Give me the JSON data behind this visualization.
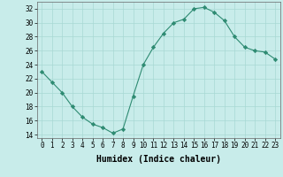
{
  "x": [
    0,
    1,
    2,
    3,
    4,
    5,
    6,
    7,
    8,
    9,
    10,
    11,
    12,
    13,
    14,
    15,
    16,
    17,
    18,
    19,
    20,
    21,
    22,
    23
  ],
  "y": [
    23,
    21.5,
    20,
    18,
    16.5,
    15.5,
    15,
    14.2,
    14.8,
    19.5,
    24,
    26.5,
    28.5,
    30,
    30.5,
    32,
    32.2,
    31.5,
    30.3,
    28,
    26.5,
    26,
    25.8,
    24.8
  ],
  "xlabel": "Humidex (Indice chaleur)",
  "ylabel": "",
  "xlim": [
    -0.5,
    23.5
  ],
  "ylim": [
    13.5,
    33
  ],
  "yticks": [
    14,
    16,
    18,
    20,
    22,
    24,
    26,
    28,
    30,
    32
  ],
  "xticks": [
    0,
    1,
    2,
    3,
    4,
    5,
    6,
    7,
    8,
    9,
    10,
    11,
    12,
    13,
    14,
    15,
    16,
    17,
    18,
    19,
    20,
    21,
    22,
    23
  ],
  "line_color": "#2e8b72",
  "marker_color": "#2e8b72",
  "bg_color": "#c8ecea",
  "grid_color": "#a8d8d4",
  "tick_fontsize": 5.5,
  "xlabel_fontsize": 7
}
